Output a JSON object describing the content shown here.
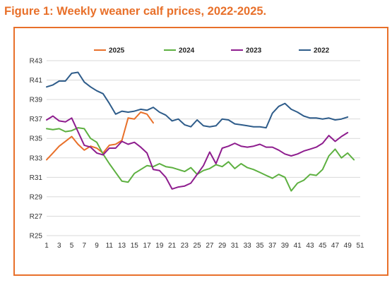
{
  "chart_data": {
    "type": "line",
    "title": "Figure 1: Weekly weaner calf prices, 2022-2025.",
    "xlabel": "",
    "ylabel": "",
    "xlim": [
      1,
      51
    ],
    "ylim": [
      25,
      43
    ],
    "x_ticks": [
      1,
      3,
      5,
      7,
      9,
      11,
      13,
      15,
      17,
      19,
      21,
      23,
      25,
      27,
      29,
      31,
      33,
      35,
      37,
      39,
      41,
      43,
      45,
      47,
      49,
      51
    ],
    "y_ticks": [
      "R25",
      "R27",
      "R29",
      "R31",
      "R33",
      "R35",
      "R37",
      "R39",
      "R41",
      "R43"
    ],
    "grid": "horizontal",
    "legend": "top",
    "series": [
      {
        "name": "2025",
        "color": "#E8702A",
        "values": [
          32.8,
          33.5,
          34.2,
          34.7,
          35.2,
          34.4,
          33.8,
          34.2,
          34.0,
          33.5,
          34.3,
          34.4,
          34.8,
          37.1,
          37.0,
          37.7,
          37.5,
          36.6
        ]
      },
      {
        "name": "2024",
        "color": "#5DB040",
        "values": [
          36.0,
          35.9,
          36.0,
          35.7,
          35.8,
          36.1,
          36.0,
          35.0,
          34.6,
          33.4,
          32.4,
          31.5,
          30.6,
          30.5,
          31.4,
          31.8,
          32.2,
          32.1,
          32.4,
          32.1,
          32.0,
          31.8,
          31.6,
          32.0,
          31.3,
          31.7,
          31.9,
          32.3,
          32.1,
          32.6,
          31.9,
          32.4,
          32.0,
          31.8,
          31.5,
          31.2,
          30.9,
          31.3,
          31.0,
          29.6,
          30.4,
          30.7,
          31.3,
          31.2,
          31.8,
          33.2,
          33.9,
          33.0,
          33.5,
          32.8
        ]
      },
      {
        "name": "2023",
        "color": "#8E1D8E",
        "values": [
          36.9,
          37.3,
          36.8,
          36.7,
          37.1,
          35.7,
          34.3,
          34.1,
          33.5,
          33.3,
          34.0,
          34.0,
          34.7,
          34.4,
          34.6,
          34.1,
          33.5,
          31.8,
          31.7,
          31.0,
          29.8,
          30.0,
          30.1,
          30.4,
          31.3,
          32.2,
          33.6,
          32.4,
          34.0,
          34.2,
          34.5,
          34.2,
          34.1,
          34.2,
          34.4,
          34.1,
          34.1,
          33.8,
          33.4,
          33.2,
          33.4,
          33.7,
          33.9,
          34.1,
          34.5,
          35.3,
          34.7,
          35.2,
          35.6
        ]
      },
      {
        "name": "2022",
        "color": "#2E5C8A",
        "values": [
          40.3,
          40.5,
          40.9,
          40.9,
          41.7,
          41.8,
          40.8,
          40.3,
          39.9,
          39.6,
          38.6,
          37.5,
          37.8,
          37.7,
          37.8,
          38.0,
          37.9,
          38.2,
          37.7,
          37.4,
          36.8,
          37.0,
          36.4,
          36.2,
          36.9,
          36.3,
          36.2,
          36.3,
          37.0,
          36.9,
          36.5,
          36.4,
          36.3,
          36.2,
          36.2,
          36.1,
          37.6,
          38.3,
          38.6,
          38.0,
          37.7,
          37.3,
          37.1,
          37.1,
          37.0,
          37.1,
          36.9,
          37.0,
          37.2
        ]
      }
    ]
  }
}
